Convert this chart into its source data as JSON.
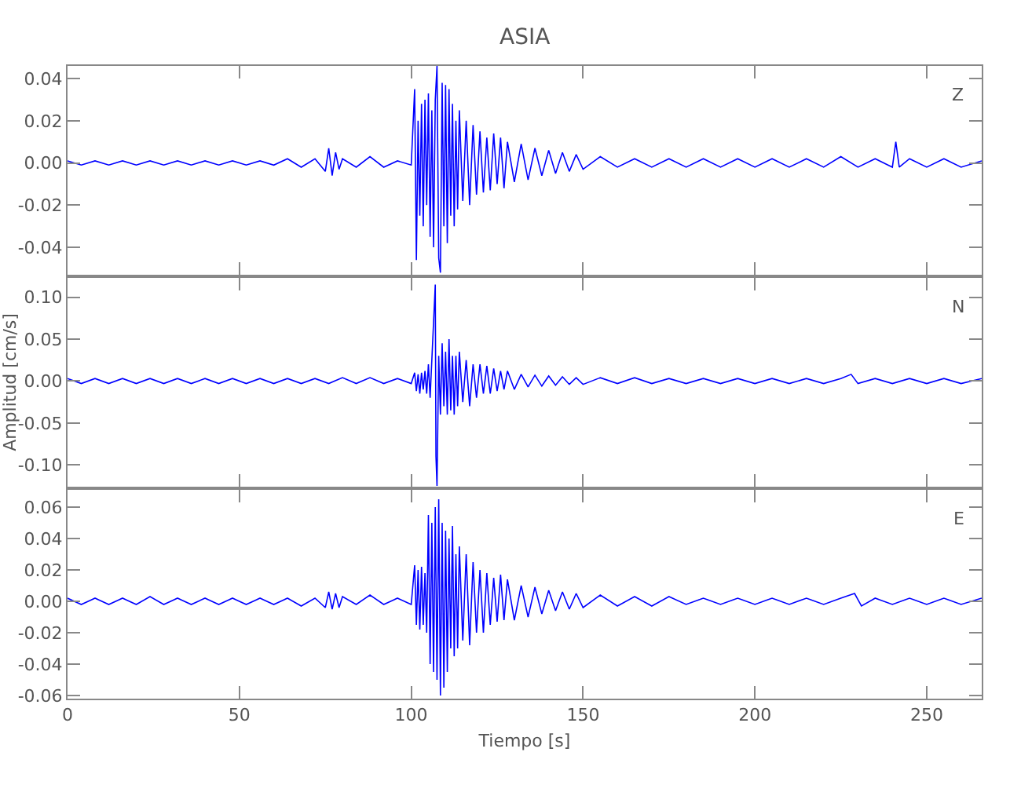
{
  "chart_data": [
    {
      "type": "line",
      "title": "ASIA",
      "annotations": [
        "Z"
      ],
      "tick_labels": "y",
      "xlim": [
        0,
        266
      ],
      "xticks": [
        0,
        50,
        100,
        150,
        200,
        250
      ],
      "ylim": [
        -0.053,
        0.046
      ],
      "yticks": [
        -0.04,
        -0.02,
        {
          "value": 0,
          "label": "0.00"
        },
        0.02,
        0.04
      ],
      "marker": "none",
      "line_style": "solid",
      "series": [
        {
          "color": "#0000ff",
          "x": [
            0,
            4,
            8,
            12,
            16,
            20,
            24,
            28,
            32,
            36,
            40,
            44,
            48,
            52,
            56,
            60,
            64,
            68,
            72,
            75,
            76,
            77,
            78,
            79,
            80,
            84,
            88,
            92,
            96,
            100,
            101,
            101.5,
            102,
            102.5,
            103,
            103.5,
            104,
            104.5,
            105,
            105.5,
            106,
            106.5,
            107,
            107.5,
            108,
            108.5,
            109,
            109.5,
            110,
            110.5,
            111,
            111.5,
            112,
            112.5,
            113,
            113.5,
            114,
            115,
            116,
            117,
            118,
            119,
            120,
            121,
            122,
            123,
            124,
            125,
            126,
            127,
            128,
            130,
            132,
            134,
            136,
            138,
            140,
            142,
            144,
            146,
            148,
            150,
            155,
            160,
            165,
            170,
            175,
            180,
            185,
            190,
            195,
            200,
            205,
            210,
            215,
            220,
            225,
            230,
            235,
            240,
            241,
            242,
            245,
            250,
            255,
            260,
            266
          ],
          "values": [
            0.001,
            -0.001,
            0.001,
            -0.001,
            0.001,
            -0.001,
            0.001,
            -0.001,
            0.001,
            -0.001,
            0.001,
            -0.001,
            0.001,
            -0.001,
            0.001,
            -0.001,
            0.002,
            -0.002,
            0.002,
            -0.004,
            0.007,
            -0.006,
            0.005,
            -0.003,
            0.002,
            -0.002,
            0.003,
            -0.002,
            0.001,
            -0.001,
            0.035,
            -0.046,
            0.02,
            -0.025,
            0.028,
            -0.03,
            0.03,
            -0.02,
            0.033,
            -0.035,
            0.025,
            -0.04,
            0.03,
            0.046,
            -0.045,
            -0.052,
            0.038,
            -0.03,
            0.037,
            -0.038,
            0.035,
            -0.025,
            0.028,
            -0.03,
            0.02,
            -0.022,
            0.025,
            -0.018,
            0.02,
            -0.02,
            0.018,
            -0.015,
            0.015,
            -0.014,
            0.012,
            -0.013,
            0.014,
            -0.01,
            0.012,
            -0.012,
            0.01,
            -0.009,
            0.009,
            -0.008,
            0.007,
            -0.006,
            0.006,
            -0.005,
            0.005,
            -0.004,
            0.004,
            -0.003,
            0.003,
            -0.002,
            0.002,
            -0.002,
            0.002,
            -0.002,
            0.002,
            -0.002,
            0.002,
            -0.002,
            0.002,
            -0.002,
            0.002,
            -0.002,
            0.003,
            -0.002,
            0.002,
            -0.002,
            0.01,
            -0.002,
            0.002,
            -0.002,
            0.002,
            -0.002,
            0.001
          ]
        }
      ]
    },
    {
      "type": "line",
      "ylabel": "Amplitud [cm/s]",
      "annotations": [
        "N"
      ],
      "tick_labels": "y",
      "xlim": [
        0,
        266
      ],
      "xticks": [
        0,
        50,
        100,
        150,
        200,
        250
      ],
      "ylim": [
        -0.126,
        0.123
      ],
      "yticks": [
        {
          "value": -0.1,
          "label": "-0.10"
        },
        -0.05,
        {
          "value": 0,
          "label": "0.00"
        },
        0.05,
        {
          "value": 0.1,
          "label": "0.10"
        }
      ],
      "marker": "none",
      "line_style": "solid",
      "series": [
        {
          "color": "#0000ff",
          "x": [
            0,
            4,
            8,
            12,
            16,
            20,
            24,
            28,
            32,
            36,
            40,
            44,
            48,
            52,
            56,
            60,
            64,
            68,
            72,
            76,
            80,
            84,
            88,
            92,
            96,
            100,
            101,
            101.5,
            102,
            102.5,
            103,
            103.5,
            104,
            104.5,
            105,
            105.5,
            106,
            106.5,
            107,
            107.2,
            107.5,
            108,
            108.5,
            109,
            109.5,
            110,
            110.5,
            111,
            111.5,
            112,
            112.5,
            113,
            113.5,
            114,
            115,
            116,
            117,
            118,
            119,
            120,
            121,
            122,
            123,
            124,
            125,
            126,
            127,
            128,
            130,
            132,
            134,
            136,
            138,
            140,
            142,
            144,
            146,
            148,
            150,
            155,
            160,
            165,
            170,
            175,
            180,
            185,
            190,
            195,
            200,
            205,
            210,
            215,
            220,
            225,
            228,
            230,
            235,
            240,
            245,
            250,
            255,
            260,
            266
          ],
          "values": [
            0.003,
            -0.003,
            0.003,
            -0.003,
            0.003,
            -0.003,
            0.003,
            -0.003,
            0.003,
            -0.003,
            0.003,
            -0.003,
            0.003,
            -0.003,
            0.003,
            -0.003,
            0.003,
            -0.003,
            0.003,
            -0.003,
            0.004,
            -0.003,
            0.004,
            -0.003,
            0.003,
            -0.003,
            0.01,
            -0.012,
            0.008,
            -0.015,
            0.01,
            -0.01,
            0.012,
            -0.015,
            0.02,
            -0.02,
            0.025,
            0.07,
            0.115,
            -0.09,
            -0.125,
            0.03,
            -0.04,
            0.045,
            -0.03,
            0.035,
            -0.04,
            0.05,
            -0.035,
            0.03,
            -0.04,
            0.03,
            -0.03,
            0.035,
            -0.025,
            0.025,
            -0.03,
            0.02,
            -0.02,
            0.02,
            -0.015,
            0.018,
            -0.015,
            0.015,
            -0.012,
            0.012,
            -0.01,
            0.012,
            -0.01,
            0.008,
            -0.007,
            0.007,
            -0.006,
            0.006,
            -0.005,
            0.005,
            -0.004,
            0.004,
            -0.004,
            0.004,
            -0.003,
            0.004,
            -0.003,
            0.003,
            -0.003,
            0.003,
            -0.003,
            0.003,
            -0.003,
            0.003,
            -0.003,
            0.003,
            -0.003,
            0.003,
            0.008,
            -0.003,
            0.003,
            -0.003,
            0.003,
            -0.003,
            0.003,
            -0.003,
            0.003
          ]
        }
      ]
    },
    {
      "type": "line",
      "xlabel": "Tiempo [s]",
      "annotations": [
        "E"
      ],
      "xlim": [
        0,
        266
      ],
      "xticks": [
        0,
        50,
        100,
        150,
        200,
        250
      ],
      "ylim": [
        -0.062,
        0.071
      ],
      "yticks": [
        -0.06,
        -0.04,
        -0.02,
        {
          "value": 0,
          "label": "0.00"
        },
        0.02,
        0.04,
        0.06
      ],
      "marker": "none",
      "line_style": "solid",
      "series": [
        {
          "color": "#0000ff",
          "x": [
            0,
            4,
            8,
            12,
            16,
            20,
            24,
            28,
            32,
            36,
            40,
            44,
            48,
            52,
            56,
            60,
            64,
            68,
            72,
            75,
            76,
            77,
            78,
            79,
            80,
            84,
            88,
            92,
            96,
            100,
            101,
            101.5,
            102,
            102.5,
            103,
            103.5,
            104,
            104.5,
            105,
            105.5,
            106,
            106.5,
            107,
            107.5,
            108,
            108.5,
            109,
            109.5,
            110,
            110.5,
            111,
            111.5,
            112,
            112.5,
            113,
            113.5,
            114,
            115,
            116,
            117,
            118,
            119,
            120,
            121,
            122,
            123,
            124,
            125,
            126,
            127,
            128,
            130,
            132,
            134,
            136,
            138,
            140,
            142,
            144,
            146,
            148,
            150,
            155,
            160,
            165,
            170,
            175,
            180,
            185,
            190,
            195,
            200,
            205,
            210,
            215,
            220,
            225,
            229,
            231,
            235,
            240,
            245,
            250,
            255,
            260,
            266
          ],
          "values": [
            0.002,
            -0.002,
            0.002,
            -0.002,
            0.002,
            -0.002,
            0.003,
            -0.002,
            0.002,
            -0.002,
            0.002,
            -0.002,
            0.002,
            -0.002,
            0.002,
            -0.002,
            0.002,
            -0.003,
            0.002,
            -0.004,
            0.006,
            -0.005,
            0.005,
            -0.004,
            0.003,
            -0.002,
            0.004,
            -0.002,
            0.002,
            -0.002,
            0.023,
            -0.015,
            0.02,
            -0.018,
            0.022,
            -0.015,
            0.018,
            -0.02,
            0.055,
            -0.04,
            0.05,
            -0.045,
            0.06,
            -0.05,
            0.065,
            -0.06,
            0.05,
            -0.055,
            0.045,
            -0.045,
            0.04,
            -0.03,
            0.048,
            -0.035,
            0.03,
            -0.03,
            0.035,
            -0.025,
            0.03,
            -0.028,
            0.025,
            -0.02,
            0.02,
            -0.02,
            0.018,
            -0.015,
            0.015,
            -0.013,
            0.017,
            -0.012,
            0.014,
            -0.012,
            0.01,
            -0.01,
            0.009,
            -0.008,
            0.007,
            -0.006,
            0.006,
            -0.005,
            0.005,
            -0.004,
            0.004,
            -0.003,
            0.003,
            -0.003,
            0.003,
            -0.002,
            0.002,
            -0.002,
            0.002,
            -0.002,
            0.002,
            -0.002,
            0.002,
            -0.002,
            0.002,
            0.005,
            -0.003,
            0.002,
            -0.002,
            0.002,
            -0.002,
            0.002,
            -0.002,
            0.002
          ]
        }
      ]
    }
  ]
}
